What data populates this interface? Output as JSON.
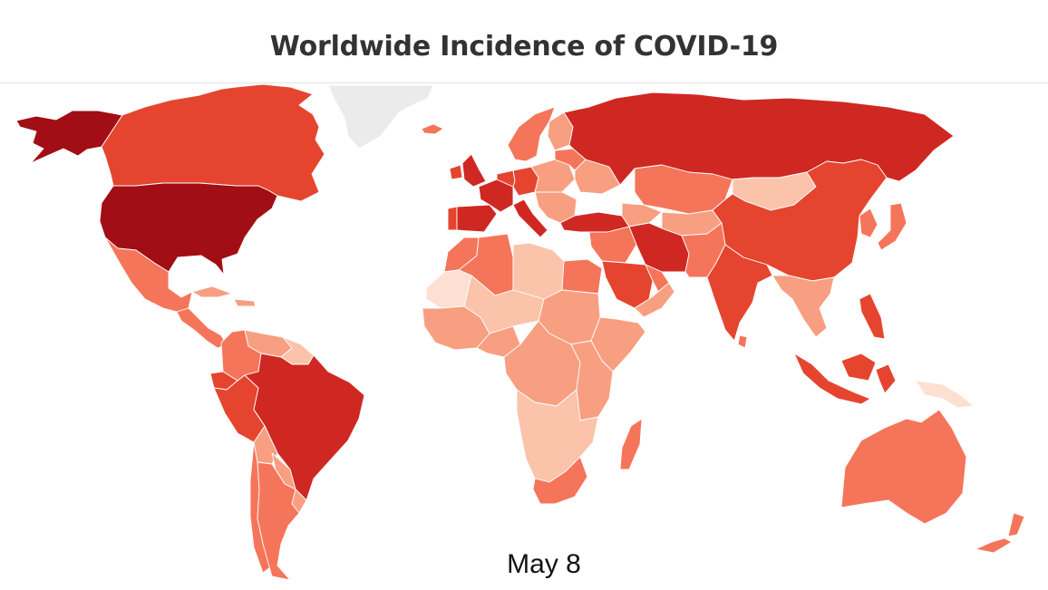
{
  "title": "Worldwide Incidence of COVID-19",
  "date_label": "May 8",
  "colors": {
    "background": "#ffffff",
    "no_data": "#ebebeb",
    "level_1": "#fde0d2",
    "level_2": "#fbc3aa",
    "level_3": "#f89f81",
    "level_4": "#f5755a",
    "level_5": "#e5452f",
    "level_6": "#cf2823",
    "level_7": "#a10e15",
    "border": "#ffffff"
  },
  "regions": [
    {
      "name": "alaska",
      "level": 7
    },
    {
      "name": "united-states",
      "level": 7
    },
    {
      "name": "canada",
      "level": 5
    },
    {
      "name": "greenland",
      "level": 0
    },
    {
      "name": "iceland",
      "level": 4
    },
    {
      "name": "mexico",
      "level": 4
    },
    {
      "name": "central-america",
      "level": 4
    },
    {
      "name": "cuba",
      "level": 3
    },
    {
      "name": "caribbean",
      "level": 3
    },
    {
      "name": "colombia",
      "level": 4
    },
    {
      "name": "venezuela",
      "level": 3
    },
    {
      "name": "guianas",
      "level": 2
    },
    {
      "name": "ecuador",
      "level": 5
    },
    {
      "name": "peru",
      "level": 5
    },
    {
      "name": "brazil",
      "level": 6
    },
    {
      "name": "bolivia",
      "level": 3
    },
    {
      "name": "paraguay",
      "level": 3
    },
    {
      "name": "chile",
      "level": 4
    },
    {
      "name": "argentina",
      "level": 4
    },
    {
      "name": "uruguay",
      "level": 3
    },
    {
      "name": "uk",
      "level": 6
    },
    {
      "name": "ireland",
      "level": 5
    },
    {
      "name": "spain",
      "level": 6
    },
    {
      "name": "portugal",
      "level": 5
    },
    {
      "name": "france",
      "level": 6
    },
    {
      "name": "western-europe",
      "level": 5
    },
    {
      "name": "germany",
      "level": 5
    },
    {
      "name": "italy",
      "level": 6
    },
    {
      "name": "scandinavia",
      "level": 4
    },
    {
      "name": "finland",
      "level": 3
    },
    {
      "name": "eastern-europe",
      "level": 3
    },
    {
      "name": "balkans",
      "level": 3
    },
    {
      "name": "ukraine",
      "level": 3
    },
    {
      "name": "belarus",
      "level": 4
    },
    {
      "name": "russia",
      "level": 6
    },
    {
      "name": "turkey",
      "level": 6
    },
    {
      "name": "caucasus",
      "level": 3
    },
    {
      "name": "kazakhstan",
      "level": 4
    },
    {
      "name": "central-asia",
      "level": 3
    },
    {
      "name": "mongolia",
      "level": 2
    },
    {
      "name": "china",
      "level": 5
    },
    {
      "name": "korea",
      "level": 4
    },
    {
      "name": "japan",
      "level": 4
    },
    {
      "name": "iran",
      "level": 6
    },
    {
      "name": "iraq-syria",
      "level": 4
    },
    {
      "name": "saudi-arabia",
      "level": 5
    },
    {
      "name": "gulf-states",
      "level": 4
    },
    {
      "name": "yemen-oman",
      "level": 3
    },
    {
      "name": "afghanistan-pakistan",
      "level": 4
    },
    {
      "name": "india",
      "level": 5
    },
    {
      "name": "sri-lanka",
      "level": 4
    },
    {
      "name": "southeast-asia",
      "level": 3
    },
    {
      "name": "indonesia",
      "level": 5
    },
    {
      "name": "philippines",
      "level": 5
    },
    {
      "name": "papua-new-guinea",
      "level": 1
    },
    {
      "name": "australia",
      "level": 4
    },
    {
      "name": "new-zealand",
      "level": 4
    },
    {
      "name": "morocco",
      "level": 4
    },
    {
      "name": "algeria",
      "level": 4
    },
    {
      "name": "libya",
      "level": 2
    },
    {
      "name": "egypt",
      "level": 4
    },
    {
      "name": "west-africa",
      "level": 3
    },
    {
      "name": "mauritania",
      "level": 1
    },
    {
      "name": "sahel",
      "level": 2
    },
    {
      "name": "nigeria",
      "level": 3
    },
    {
      "name": "sudan",
      "level": 3
    },
    {
      "name": "horn-of-africa",
      "level": 3
    },
    {
      "name": "central-africa",
      "level": 3
    },
    {
      "name": "east-africa",
      "level": 3
    },
    {
      "name": "southern-africa",
      "level": 2
    },
    {
      "name": "south-africa",
      "level": 4
    },
    {
      "name": "madagascar",
      "level": 4
    }
  ]
}
